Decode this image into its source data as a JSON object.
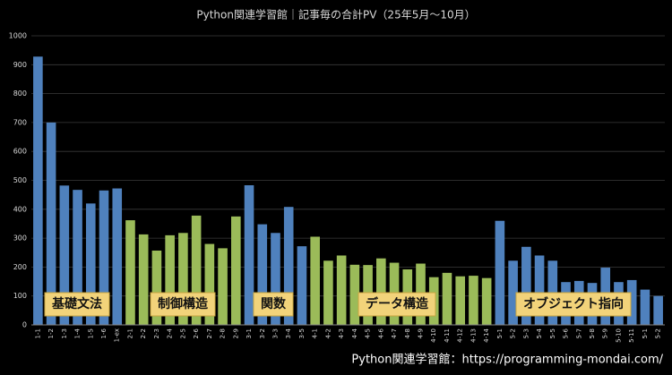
{
  "chart_data": {
    "type": "bar",
    "title": "Python関連学習館｜記事毎の合計PV（25年5月～10月）",
    "categories": [
      "1-1",
      "1-2",
      "1-3",
      "1-4",
      "1-5",
      "1-6",
      "1-ex",
      "2-1",
      "2-2",
      "2-3",
      "2-4",
      "2-5",
      "2-6",
      "2-7",
      "2-8",
      "2-9",
      "3-1",
      "3-2",
      "3-3",
      "3-4",
      "3-5",
      "4-1",
      "4-2",
      "4-3",
      "4-4",
      "4-5",
      "4-6",
      "4-7",
      "4-8",
      "4-9",
      "4-10",
      "4-11",
      "4-12",
      "4-13",
      "4-14",
      "5-1",
      "5-2",
      "5-3",
      "5-4",
      "5-5",
      "5-6",
      "5-7",
      "5-8",
      "5-9",
      "5-10",
      "5-11",
      "5-1",
      "5-2"
    ],
    "values": [
      928,
      700,
      482,
      467,
      420,
      465,
      472,
      362,
      313,
      257,
      310,
      318,
      378,
      280,
      265,
      375,
      483,
      348,
      318,
      408,
      272,
      305,
      222,
      240,
      208,
      207,
      230,
      215,
      192,
      212,
      165,
      180,
      168,
      170,
      162,
      360,
      222,
      270,
      240,
      222,
      148,
      152,
      145,
      198,
      148,
      155,
      122,
      100
    ],
    "colors": [
      "#4f81bd",
      "#4f81bd",
      "#4f81bd",
      "#4f81bd",
      "#4f81bd",
      "#4f81bd",
      "#4f81bd",
      "#9bbb59",
      "#9bbb59",
      "#9bbb59",
      "#9bbb59",
      "#9bbb59",
      "#9bbb59",
      "#9bbb59",
      "#9bbb59",
      "#9bbb59",
      "#4f81bd",
      "#4f81bd",
      "#4f81bd",
      "#4f81bd",
      "#4f81bd",
      "#9bbb59",
      "#9bbb59",
      "#9bbb59",
      "#9bbb59",
      "#9bbb59",
      "#9bbb59",
      "#9bbb59",
      "#9bbb59",
      "#9bbb59",
      "#9bbb59",
      "#9bbb59",
      "#9bbb59",
      "#9bbb59",
      "#9bbb59",
      "#4f81bd",
      "#4f81bd",
      "#4f81bd",
      "#4f81bd",
      "#4f81bd",
      "#4f81bd",
      "#4f81bd",
      "#4f81bd",
      "#4f81bd",
      "#4f81bd",
      "#4f81bd",
      "#4f81bd",
      "#4f81bd"
    ],
    "ylim": [
      0,
      1000
    ],
    "yticks": [
      0,
      100,
      200,
      300,
      400,
      500,
      600,
      700,
      800,
      900,
      1000
    ],
    "grid": true,
    "annotations": [
      "基礎文法",
      "制御構造",
      "関数",
      "データ構造",
      "オブジェクト指向"
    ],
    "watermark": "Python関連学習館：https://programming-mondai.com/"
  }
}
